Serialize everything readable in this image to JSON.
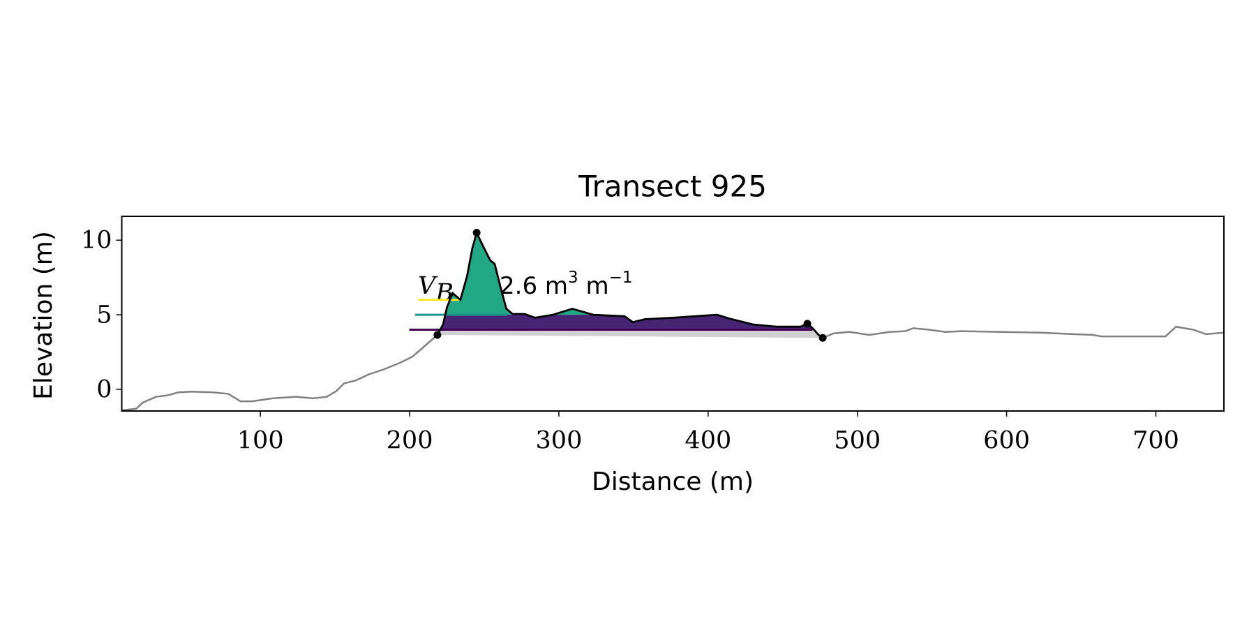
{
  "chart_data": {
    "type": "profile",
    "title": "Transect 925",
    "xlabel": "Distance (m)",
    "ylabel": "Elevation (m)",
    "xlim": [
      7.1,
      745.6
    ],
    "ylim": [
      -1.45,
      11.6
    ],
    "xticks": [
      100,
      200,
      300,
      400,
      500,
      600,
      700
    ],
    "yticks": [
      0,
      5,
      10
    ],
    "profile": {
      "color": "#808080",
      "x": [
        7.1,
        16.8,
        21,
        30,
        38,
        45,
        54,
        68,
        78.5,
        86.6,
        94.6,
        108,
        124,
        135,
        144.5,
        151,
        156,
        164,
        172.5,
        183,
        194,
        202,
        210,
        218.6,
        222.4,
        225,
        228.8,
        234,
        238.5,
        242,
        244.9,
        248.7,
        254,
        257,
        261,
        264.8,
        269,
        277,
        284,
        296,
        309,
        323,
        344,
        349.6,
        357.6,
        376.5,
        406,
        414,
        430,
        446,
        462,
        466.5,
        470,
        474,
        476.8,
        484,
        494.5,
        508,
        521.6,
        532,
        537.5,
        548,
        559,
        569.7,
        623,
        645,
        658,
        663.6,
        706.5,
        713.5,
        725,
        733.6,
        745.6
      ],
      "y": [
        -1.4,
        -1.3,
        -0.9,
        -0.5,
        -0.4,
        -0.2,
        -0.15,
        -0.2,
        -0.3,
        -0.8,
        -0.8,
        -0.6,
        -0.5,
        -0.6,
        -0.5,
        -0.1,
        0.4,
        0.6,
        1.0,
        1.35,
        1.8,
        2.2,
        2.9,
        3.65,
        4.35,
        5.5,
        6.45,
        6.0,
        7.6,
        9.45,
        10.5,
        9.7,
        8.65,
        8.4,
        6.8,
        5.4,
        5.05,
        5.05,
        4.8,
        5.0,
        5.4,
        5.0,
        4.9,
        4.5,
        4.7,
        4.8,
        5.0,
        4.75,
        4.35,
        4.2,
        4.2,
        4.4,
        4.1,
        3.65,
        3.45,
        3.75,
        3.85,
        3.65,
        3.85,
        3.9,
        4.1,
        4.0,
        3.85,
        3.9,
        3.8,
        3.7,
        3.65,
        3.55,
        3.55,
        4.2,
        4.0,
        3.7,
        3.8
      ]
    },
    "dune": {
      "color": "#000000",
      "x": [
        218.6,
        222.4,
        225,
        228.8,
        234,
        238.5,
        242,
        244.9,
        248.7,
        254,
        257,
        261,
        264.8,
        269,
        277,
        284,
        296,
        309,
        323,
        344,
        349.6,
        357.6,
        376.5,
        406,
        414,
        430,
        446,
        462,
        466.5,
        470,
        474,
        476.8
      ],
      "y": [
        3.65,
        4.35,
        5.5,
        6.45,
        6.0,
        7.6,
        9.45,
        10.5,
        9.7,
        8.65,
        8.4,
        6.8,
        5.4,
        5.05,
        5.05,
        4.8,
        5.0,
        5.4,
        5.0,
        4.9,
        4.5,
        4.7,
        4.8,
        5.0,
        4.75,
        4.35,
        4.2,
        4.2,
        4.4,
        4.1,
        3.65,
        3.45
      ]
    },
    "markers": {
      "x": [
        218.6,
        244.9,
        466.5,
        476.8
      ],
      "y": [
        3.65,
        10.5,
        4.4,
        3.45
      ],
      "color": "#000000"
    },
    "levels": [
      {
        "value": 6.0,
        "x": [
          205.7,
          234
        ],
        "color": "#fde725"
      },
      {
        "value": 5.0,
        "x": [
          203.6,
          265
        ],
        "color": "#21918c",
        "fill": "#22a884"
      },
      {
        "value": 4.0,
        "x": [
          199.8,
          470
        ],
        "color": "#440154",
        "fill": "#482475"
      }
    ],
    "base_fill": "#d0d0d0",
    "annotation": {
      "symbol": "V",
      "subscript": "B",
      "text": "2.6 m",
      "power1": "3",
      "text2": " m",
      "power2": "−1"
    }
  }
}
